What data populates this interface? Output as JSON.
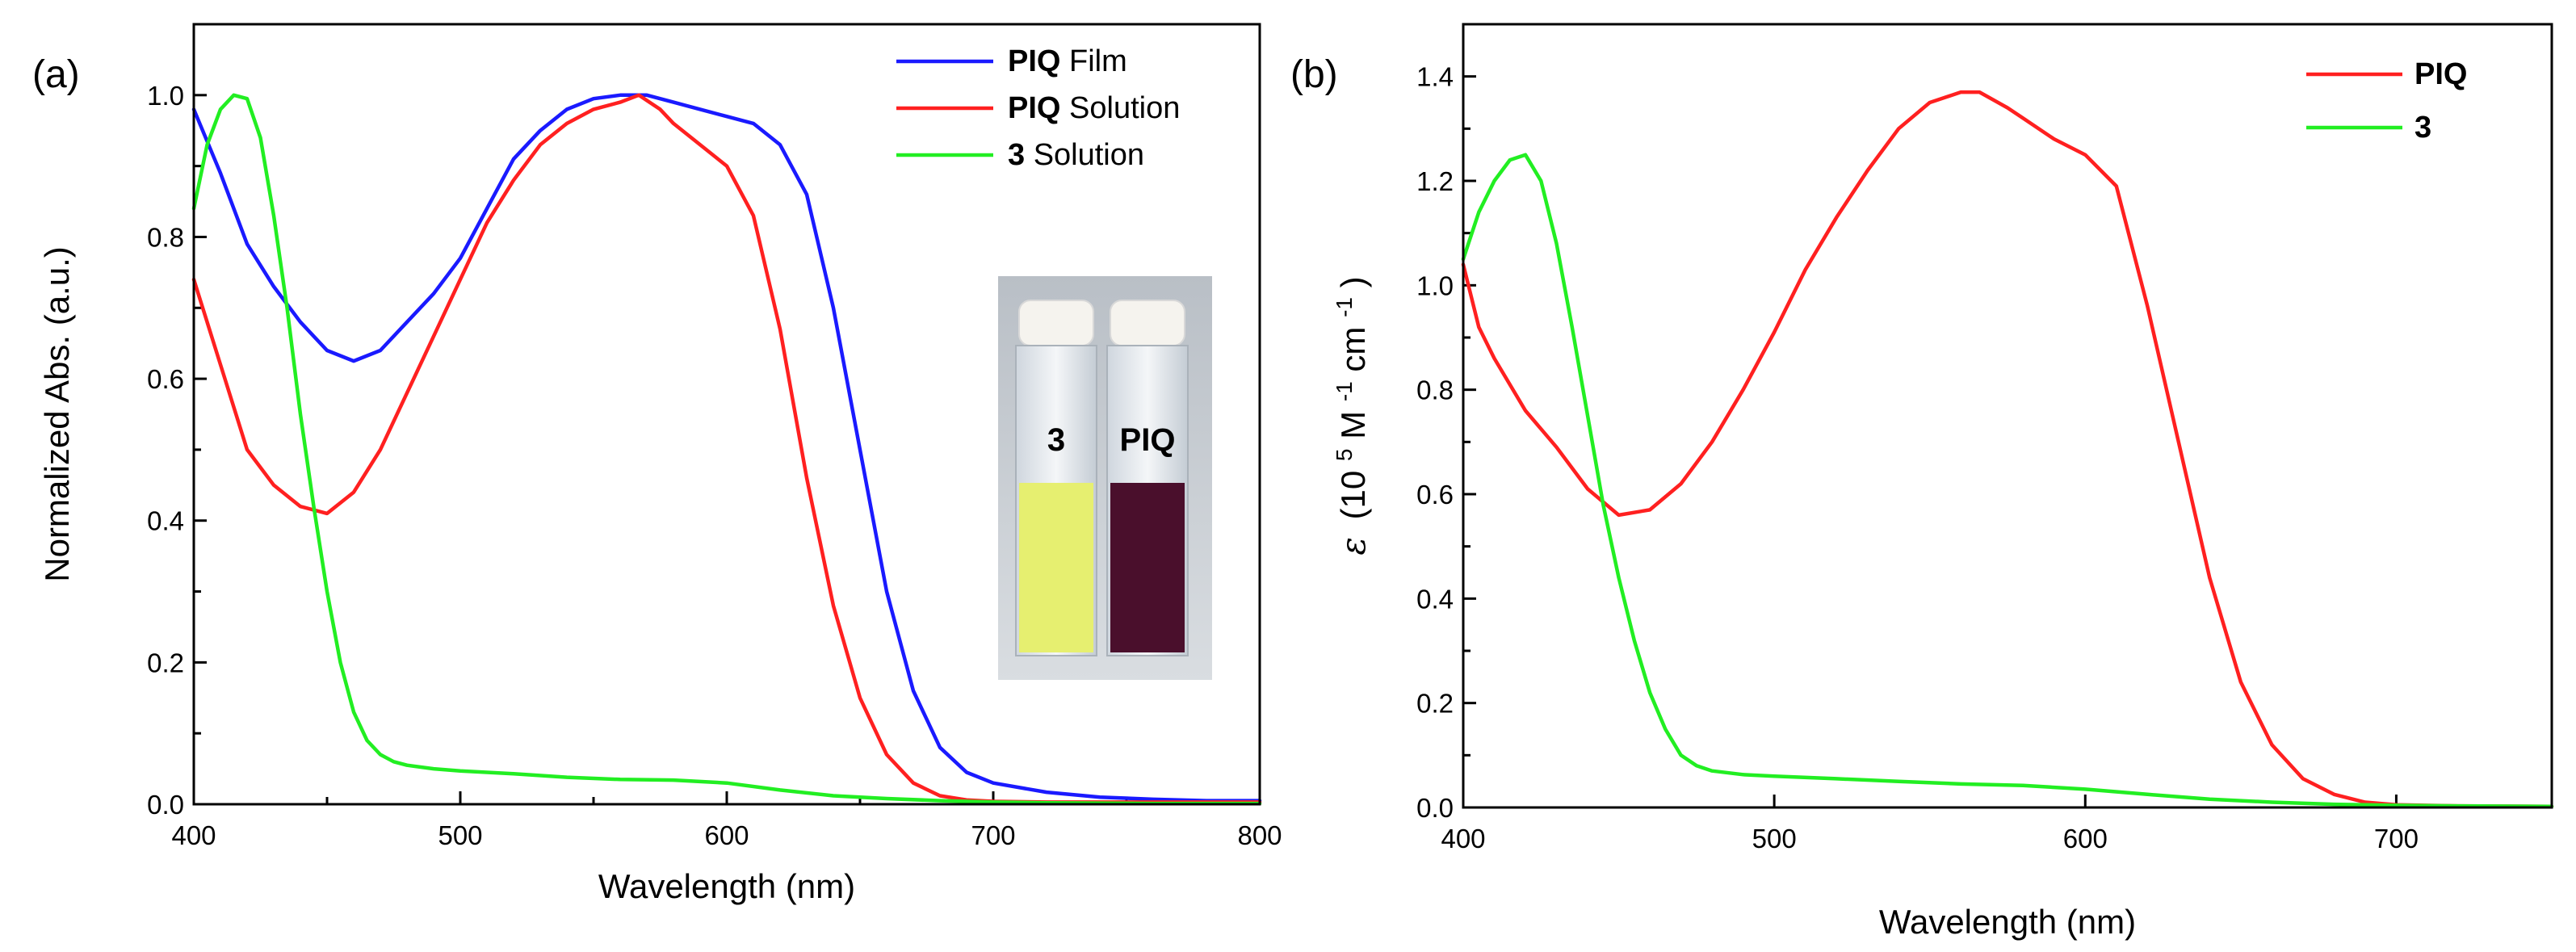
{
  "chart_data": [
    {
      "type": "line",
      "panel_label": "(a)",
      "xlabel": "Wavelength (nm)",
      "ylabel": "Normalized Abs. (a.u.)",
      "xlim": [
        400,
        800
      ],
      "ylim": [
        0,
        1.1
      ],
      "xticks": [
        400,
        500,
        600,
        700,
        800
      ],
      "yticks": [
        0.0,
        0.2,
        0.4,
        0.6,
        0.8,
        1.0
      ],
      "xtick_labels": [
        "400",
        "500",
        "600",
        "700",
        "800"
      ],
      "ytick_labels": [
        "0.0",
        "0.2",
        "0.4",
        "0.6",
        "0.8",
        "1.0"
      ],
      "legend_position": "top-right",
      "series": [
        {
          "name": "PIQ Film",
          "legend_bold": "PIQ",
          "legend_rest": " Film",
          "color": "#1a1aff",
          "x": [
            400,
            410,
            420,
            430,
            440,
            450,
            460,
            470,
            480,
            490,
            500,
            510,
            520,
            530,
            540,
            550,
            560,
            570,
            580,
            590,
            600,
            610,
            620,
            630,
            640,
            650,
            660,
            670,
            680,
            690,
            700,
            720,
            740,
            760,
            780,
            800
          ],
          "y": [
            0.98,
            0.89,
            0.79,
            0.73,
            0.68,
            0.64,
            0.625,
            0.64,
            0.68,
            0.72,
            0.77,
            0.84,
            0.91,
            0.95,
            0.98,
            0.995,
            1.0,
            1.0,
            0.99,
            0.98,
            0.97,
            0.96,
            0.93,
            0.86,
            0.7,
            0.5,
            0.3,
            0.16,
            0.08,
            0.045,
            0.03,
            0.017,
            0.01,
            0.007,
            0.005,
            0.005
          ]
        },
        {
          "name": "PIQ Solution",
          "legend_bold": "PIQ",
          "legend_rest": " Solution",
          "color": "#ff2020",
          "x": [
            400,
            410,
            420,
            430,
            440,
            450,
            460,
            470,
            480,
            490,
            500,
            510,
            520,
            530,
            540,
            550,
            560,
            567,
            575,
            580,
            590,
            600,
            610,
            620,
            630,
            640,
            650,
            660,
            670,
            680,
            690,
            700,
            720,
            740,
            760,
            780,
            800
          ],
          "y": [
            0.74,
            0.62,
            0.5,
            0.45,
            0.42,
            0.41,
            0.44,
            0.5,
            0.58,
            0.66,
            0.74,
            0.82,
            0.88,
            0.93,
            0.96,
            0.98,
            0.99,
            1.0,
            0.98,
            0.96,
            0.93,
            0.9,
            0.83,
            0.67,
            0.46,
            0.28,
            0.15,
            0.07,
            0.03,
            0.012,
            0.006,
            0.004,
            0.003,
            0.003,
            0.003,
            0.003,
            0.003
          ]
        },
        {
          "name": "3 Solution",
          "legend_bold": "3",
          "legend_rest": " Solution",
          "color": "#22ee22",
          "x": [
            400,
            405,
            410,
            415,
            420,
            425,
            430,
            435,
            440,
            445,
            450,
            455,
            460,
            465,
            470,
            475,
            480,
            490,
            500,
            520,
            540,
            560,
            580,
            600,
            620,
            640,
            660,
            680,
            700,
            720,
            760,
            800
          ],
          "y": [
            0.84,
            0.93,
            0.98,
            1.0,
            0.995,
            0.94,
            0.83,
            0.7,
            0.55,
            0.42,
            0.3,
            0.2,
            0.13,
            0.09,
            0.07,
            0.06,
            0.055,
            0.05,
            0.047,
            0.043,
            0.038,
            0.035,
            0.034,
            0.03,
            0.02,
            0.012,
            0.008,
            0.005,
            0.003,
            0.002,
            0.001,
            0.001
          ]
        }
      ],
      "inset": {
        "labels": [
          "3",
          "PIQ"
        ],
        "liquid_colors": [
          "#e6ef70",
          "#4a0f2c"
        ]
      }
    },
    {
      "type": "line",
      "panel_label": "(b)",
      "xlabel": "Wavelength (nm)",
      "ylabel_symbol": "ε",
      "ylabel_parts": [
        "(10",
        "5",
        " M",
        "-1",
        "cm",
        "-1",
        ")"
      ],
      "xlim": [
        400,
        750
      ],
      "ylim": [
        0,
        1.5
      ],
      "xticks": [
        400,
        500,
        600,
        700
      ],
      "yticks": [
        0.0,
        0.2,
        0.4,
        0.6,
        0.8,
        1.0,
        1.2,
        1.4
      ],
      "xtick_labels": [
        "400",
        "500",
        "600",
        "700"
      ],
      "ytick_labels": [
        "0.0",
        "0.2",
        "0.4",
        "0.6",
        "0.8",
        "1.0",
        "1.2",
        "1.4"
      ],
      "legend_position": "top-right",
      "series": [
        {
          "name": "PIQ",
          "legend_bold": "PIQ",
          "legend_rest": "",
          "color": "#ff2020",
          "x": [
            400,
            405,
            410,
            420,
            430,
            440,
            450,
            460,
            470,
            480,
            490,
            500,
            510,
            520,
            530,
            540,
            550,
            560,
            566,
            575,
            580,
            590,
            600,
            610,
            620,
            630,
            640,
            650,
            660,
            670,
            680,
            690,
            700,
            720,
            750
          ],
          "y": [
            1.04,
            0.92,
            0.86,
            0.76,
            0.69,
            0.61,
            0.56,
            0.57,
            0.62,
            0.7,
            0.8,
            0.91,
            1.03,
            1.13,
            1.22,
            1.3,
            1.35,
            1.37,
            1.37,
            1.34,
            1.32,
            1.28,
            1.25,
            1.19,
            0.96,
            0.7,
            0.44,
            0.24,
            0.12,
            0.055,
            0.025,
            0.01,
            0.005,
            0.003,
            0.002
          ]
        },
        {
          "name": "3",
          "legend_bold": "3",
          "legend_rest": "",
          "color": "#22ee22",
          "x": [
            400,
            405,
            410,
            415,
            420,
            425,
            430,
            435,
            440,
            445,
            450,
            455,
            460,
            465,
            470,
            475,
            480,
            490,
            500,
            520,
            540,
            560,
            580,
            600,
            620,
            640,
            660,
            680,
            700,
            720,
            750
          ],
          "y": [
            1.05,
            1.14,
            1.2,
            1.24,
            1.25,
            1.2,
            1.08,
            0.92,
            0.75,
            0.58,
            0.44,
            0.32,
            0.22,
            0.15,
            0.1,
            0.08,
            0.07,
            0.063,
            0.06,
            0.055,
            0.05,
            0.045,
            0.042,
            0.035,
            0.025,
            0.016,
            0.01,
            0.006,
            0.004,
            0.003,
            0.002
          ]
        }
      ]
    }
  ]
}
